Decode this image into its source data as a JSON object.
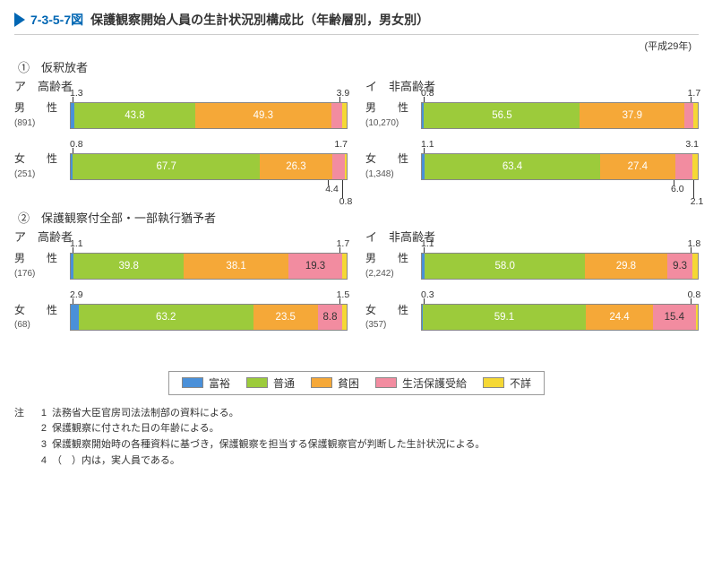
{
  "title": {
    "figure_no": "7-3-5-7図",
    "text": "保護観察開始人員の生計状況別構成比（年齢層別，男女別）"
  },
  "year_label": "(平成29年)",
  "colors": {
    "wealthy": "#4a90d9",
    "normal": "#9ccb3b",
    "poor": "#f5a838",
    "welfare": "#f28ca0",
    "unknown": "#f5d835"
  },
  "legend": {
    "wealthy": "富裕",
    "normal": "普通",
    "poor": "貧困",
    "welfare": "生活保護受給",
    "unknown": "不詳"
  },
  "sections": [
    {
      "num": "①",
      "title": "仮釈放者",
      "groups": [
        {
          "kana": "ア",
          "head": "高齢者",
          "rows": [
            {
              "sex": "男　　性",
              "count": "(891)",
              "seg": [
                {
                  "k": "wealthy",
                  "v": 1.3,
                  "label": "1.3",
                  "call": "top",
                  "pos": 0
                },
                {
                  "k": "normal",
                  "v": 43.8,
                  "label": "43.8",
                  "in": true,
                  "dark": false
                },
                {
                  "k": "poor",
                  "v": 49.3,
                  "label": "49.3",
                  "in": true
                },
                {
                  "k": "welfare",
                  "v": 3.9,
                  "label": "3.9",
                  "call": "top",
                  "pos": 96
                },
                {
                  "k": "unknown",
                  "v": 1.7,
                  "label": "",
                  "call": "",
                  "pos": 0
                }
              ]
            },
            {
              "sex": "女　　性",
              "count": "(251)",
              "seg": [
                {
                  "k": "wealthy",
                  "v": 0.8,
                  "label": "0.8",
                  "call": "top",
                  "pos": 0
                },
                {
                  "k": "normal",
                  "v": 67.7,
                  "label": "67.7",
                  "in": true
                },
                {
                  "k": "poor",
                  "v": 26.3,
                  "label": "26.3",
                  "in": true
                },
                {
                  "k": "welfare",
                  "v": 4.4,
                  "label": "4.4",
                  "call": "bot",
                  "pos": 92
                },
                {
                  "k": "unknown",
                  "v": 0.8,
                  "label": "0.8",
                  "call": "bot2",
                  "pos": 97
                }
              ],
              "extra_top_right": "1.7"
            }
          ]
        },
        {
          "kana": "イ",
          "head": "非高齢者",
          "rows": [
            {
              "sex": "男　　性",
              "count": "(10,270)",
              "seg": [
                {
                  "k": "wealthy",
                  "v": 0.8,
                  "label": "0.8",
                  "call": "top",
                  "pos": 0
                },
                {
                  "k": "normal",
                  "v": 56.5,
                  "label": "56.5",
                  "in": true
                },
                {
                  "k": "poor",
                  "v": 37.9,
                  "label": "37.9",
                  "in": true
                },
                {
                  "k": "welfare",
                  "v": 3.1,
                  "label": "",
                  "call": "",
                  "pos": 0
                },
                {
                  "k": "unknown",
                  "v": 1.7,
                  "label": "1.7",
                  "call": "top",
                  "pos": 96
                }
              ]
            },
            {
              "sex": "女　　性",
              "count": "(1,348)",
              "seg": [
                {
                  "k": "wealthy",
                  "v": 1.1,
                  "label": "1.1",
                  "call": "top",
                  "pos": 0
                },
                {
                  "k": "normal",
                  "v": 63.4,
                  "label": "63.4",
                  "in": true
                },
                {
                  "k": "poor",
                  "v": 27.4,
                  "label": "27.4",
                  "in": true
                },
                {
                  "k": "welfare",
                  "v": 6.0,
                  "label": "6.0",
                  "call": "bot",
                  "pos": 90
                },
                {
                  "k": "unknown",
                  "v": 2.1,
                  "label": "2.1",
                  "call": "bot2",
                  "pos": 97
                }
              ],
              "extra_top_right": "3.1"
            }
          ]
        }
      ]
    },
    {
      "num": "②",
      "title": "保護観察付全部・一部執行猶予者",
      "groups": [
        {
          "kana": "ア",
          "head": "高齢者",
          "rows": [
            {
              "sex": "男　　性",
              "count": "(176)",
              "seg": [
                {
                  "k": "wealthy",
                  "v": 1.1,
                  "label": "1.1",
                  "call": "top",
                  "pos": 0
                },
                {
                  "k": "normal",
                  "v": 39.8,
                  "label": "39.8",
                  "in": true
                },
                {
                  "k": "poor",
                  "v": 38.1,
                  "label": "38.1",
                  "in": true
                },
                {
                  "k": "welfare",
                  "v": 19.3,
                  "label": "19.3",
                  "in": true,
                  "dark": true
                },
                {
                  "k": "unknown",
                  "v": 1.7,
                  "label": "1.7",
                  "call": "top",
                  "pos": 96
                }
              ]
            },
            {
              "sex": "女　　性",
              "count": "(68)",
              "seg": [
                {
                  "k": "wealthy",
                  "v": 2.9,
                  "label": "2.9",
                  "call": "top",
                  "pos": 0
                },
                {
                  "k": "normal",
                  "v": 63.2,
                  "label": "63.2",
                  "in": true
                },
                {
                  "k": "poor",
                  "v": 23.5,
                  "label": "23.5",
                  "in": true
                },
                {
                  "k": "welfare",
                  "v": 8.8,
                  "label": "8.8",
                  "in": true,
                  "dark": true
                },
                {
                  "k": "unknown",
                  "v": 1.5,
                  "label": "1.5",
                  "call": "top",
                  "pos": 96
                }
              ]
            }
          ]
        },
        {
          "kana": "イ",
          "head": "非高齢者",
          "rows": [
            {
              "sex": "男　　性",
              "count": "(2,242)",
              "seg": [
                {
                  "k": "wealthy",
                  "v": 1.1,
                  "label": "1.1",
                  "call": "top",
                  "pos": 0
                },
                {
                  "k": "normal",
                  "v": 58.0,
                  "label": "58.0",
                  "in": true
                },
                {
                  "k": "poor",
                  "v": 29.8,
                  "label": "29.8",
                  "in": true
                },
                {
                  "k": "welfare",
                  "v": 9.3,
                  "label": "9.3",
                  "in": true,
                  "dark": true
                },
                {
                  "k": "unknown",
                  "v": 1.8,
                  "label": "1.8",
                  "call": "top",
                  "pos": 96
                }
              ]
            },
            {
              "sex": "女　　性",
              "count": "(357)",
              "seg": [
                {
                  "k": "wealthy",
                  "v": 0.3,
                  "label": "0.3",
                  "call": "top",
                  "pos": 0
                },
                {
                  "k": "normal",
                  "v": 59.1,
                  "label": "59.1",
                  "in": true
                },
                {
                  "k": "poor",
                  "v": 24.4,
                  "label": "24.4",
                  "in": true
                },
                {
                  "k": "welfare",
                  "v": 15.4,
                  "label": "15.4",
                  "in": true,
                  "dark": true
                },
                {
                  "k": "unknown",
                  "v": 0.8,
                  "label": "0.8",
                  "call": "top",
                  "pos": 96
                }
              ]
            }
          ]
        }
      ]
    }
  ],
  "notes": {
    "label": "注",
    "items": [
      "法務省大臣官房司法法制部の資料による。",
      "保護観察に付された日の年齢による。",
      "保護観察開始時の各種資料に基づき，保護観察を担当する保護観察官が判断した生計状況による。",
      "（　）内は，実人員である。"
    ]
  }
}
